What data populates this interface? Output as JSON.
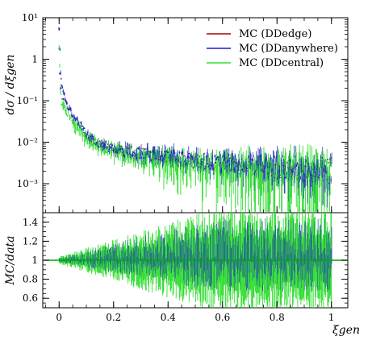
{
  "chart_data": [
    {
      "type": "line",
      "ylabel": "dσ / dξgen",
      "yscale": "log",
      "ylim": [
        0.0002,
        10
      ],
      "xlim": [
        -0.06,
        1.06
      ],
      "yticks": [
        {
          "value": 10,
          "label": "10¹"
        },
        {
          "value": 1,
          "label": "1"
        },
        {
          "value": 0.1,
          "label": "10⁻¹"
        },
        {
          "value": 0.01,
          "label": "10⁻²"
        },
        {
          "value": 0.001,
          "label": "10⁻³"
        }
      ],
      "legend_position": "top-right",
      "series": [
        {
          "name": "MC (DDedge)",
          "color": "#aa0000"
        },
        {
          "name": "MC (DDanywhere)",
          "color": "#1a1acc"
        },
        {
          "name": "MC (DDcentral)",
          "color": "#33dd33"
        }
      ],
      "x": [
        0.0,
        0.005,
        0.01,
        0.02,
        0.03,
        0.05,
        0.08,
        0.1,
        0.15,
        0.2,
        0.25,
        0.3,
        0.4,
        0.5,
        0.6,
        0.7,
        0.8,
        0.9,
        1.0
      ],
      "envelope": {
        "blue_center": [
          5.5,
          0.45,
          0.2,
          0.12,
          0.08,
          0.04,
          0.025,
          0.015,
          0.009,
          0.007,
          0.006,
          0.0055,
          0.0045,
          0.0035,
          0.003,
          0.0027,
          0.0025,
          0.0022,
          0.002
        ],
        "green_center": [
          1.8,
          0.2,
          0.1,
          0.07,
          0.05,
          0.03,
          0.02,
          0.012,
          0.008,
          0.006,
          0.005,
          0.0045,
          0.0038,
          0.003,
          0.0027,
          0.0024,
          0.0022,
          0.002,
          0.0018
        ]
      }
    },
    {
      "type": "line",
      "ylabel": "MC/data",
      "xlabel": "ξgen",
      "ylim": [
        0.5,
        1.5
      ],
      "xlim": [
        -0.06,
        1.06
      ],
      "yticks": [
        {
          "value": 0.6,
          "label": "0.6"
        },
        {
          "value": 0.8,
          "label": "0.8"
        },
        {
          "value": 1.0,
          "label": "1"
        },
        {
          "value": 1.2,
          "label": "1.2"
        },
        {
          "value": 1.4,
          "label": "1.4"
        }
      ],
      "xticks": [
        {
          "value": 0,
          "label": "0"
        },
        {
          "value": 0.2,
          "label": "0.2"
        },
        {
          "value": 0.4,
          "label": "0.4"
        },
        {
          "value": 0.6,
          "label": "0.6"
        },
        {
          "value": 0.8,
          "label": "0.8"
        },
        {
          "value": 1.0,
          "label": "1"
        }
      ],
      "reference_line": 1.0,
      "reference_color": "#00aa00"
    }
  ]
}
